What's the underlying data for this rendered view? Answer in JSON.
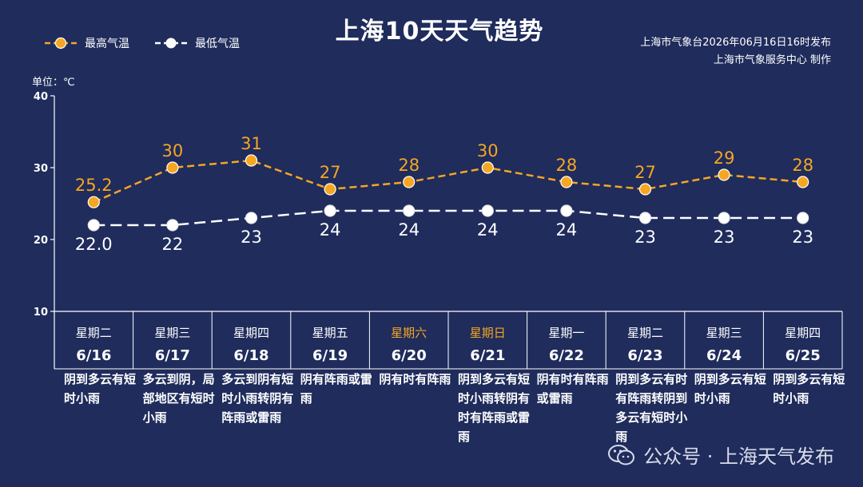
{
  "title": "上海10天天气趋势",
  "issuer_line1": "上海市气象台2026年06月16日16时发布",
  "issuer_line2": "上海市气象服务中心 制作",
  "unit_label": "单位：℃",
  "watermark": "公众号 · 上海天气发布",
  "colors": {
    "background": "#1f2c5c",
    "high": "#f5a623",
    "low": "#ffffff",
    "weekend": "#f5a623"
  },
  "chart_data": {
    "type": "line",
    "title": "上海10天天气趋势",
    "ylabel": "单位：℃",
    "ylim": [
      10,
      40
    ],
    "yticks": [
      "10",
      "20",
      "30",
      "40"
    ],
    "grid": false,
    "legend_position": "top-left",
    "categories": [
      "6/16",
      "6/17",
      "6/18",
      "6/19",
      "6/20",
      "6/21",
      "6/22",
      "6/23",
      "6/24",
      "6/25"
    ],
    "series": [
      {
        "name": "最高气温",
        "color": "#f5a623",
        "values": [
          25.2,
          30,
          31,
          27,
          28,
          30,
          28,
          27,
          29,
          28
        ],
        "labels": [
          "25.2",
          "30",
          "31",
          "27",
          "28",
          "30",
          "28",
          "27",
          "29",
          "28"
        ]
      },
      {
        "name": "最低气温",
        "color": "#ffffff",
        "values": [
          22.0,
          22,
          23,
          24,
          24,
          24,
          24,
          23,
          23,
          23
        ],
        "labels": [
          "22.0",
          "22",
          "23",
          "24",
          "24",
          "24",
          "24",
          "23",
          "23",
          "23"
        ]
      }
    ]
  },
  "days": [
    {
      "weekday": "星期二",
      "date": "6/16",
      "weekend": false,
      "desc": "阴到多云有短时小雨"
    },
    {
      "weekday": "星期三",
      "date": "6/17",
      "weekend": false,
      "desc": "多云到阴，局部地区有短时小雨"
    },
    {
      "weekday": "星期四",
      "date": "6/18",
      "weekend": false,
      "desc": "多云到阴有短时小雨转阴有阵雨或雷雨"
    },
    {
      "weekday": "星期五",
      "date": "6/19",
      "weekend": false,
      "desc": "阴有阵雨或雷雨"
    },
    {
      "weekday": "星期六",
      "date": "6/20",
      "weekend": true,
      "desc": "阴有时有阵雨"
    },
    {
      "weekday": "星期日",
      "date": "6/21",
      "weekend": true,
      "desc": "阴到多云有短时小雨转阴有时有阵雨或雷雨"
    },
    {
      "weekday": "星期一",
      "date": "6/22",
      "weekend": false,
      "desc": "阴有时有阵雨或雷雨"
    },
    {
      "weekday": "星期二",
      "date": "6/23",
      "weekend": false,
      "desc": "阴到多云有时有阵雨转阴到多云有短时小雨"
    },
    {
      "weekday": "星期三",
      "date": "6/24",
      "weekend": false,
      "desc": "阴到多云有短时小雨"
    },
    {
      "weekday": "星期四",
      "date": "6/25",
      "weekend": false,
      "desc": "阴到多云有短时小雨"
    }
  ]
}
